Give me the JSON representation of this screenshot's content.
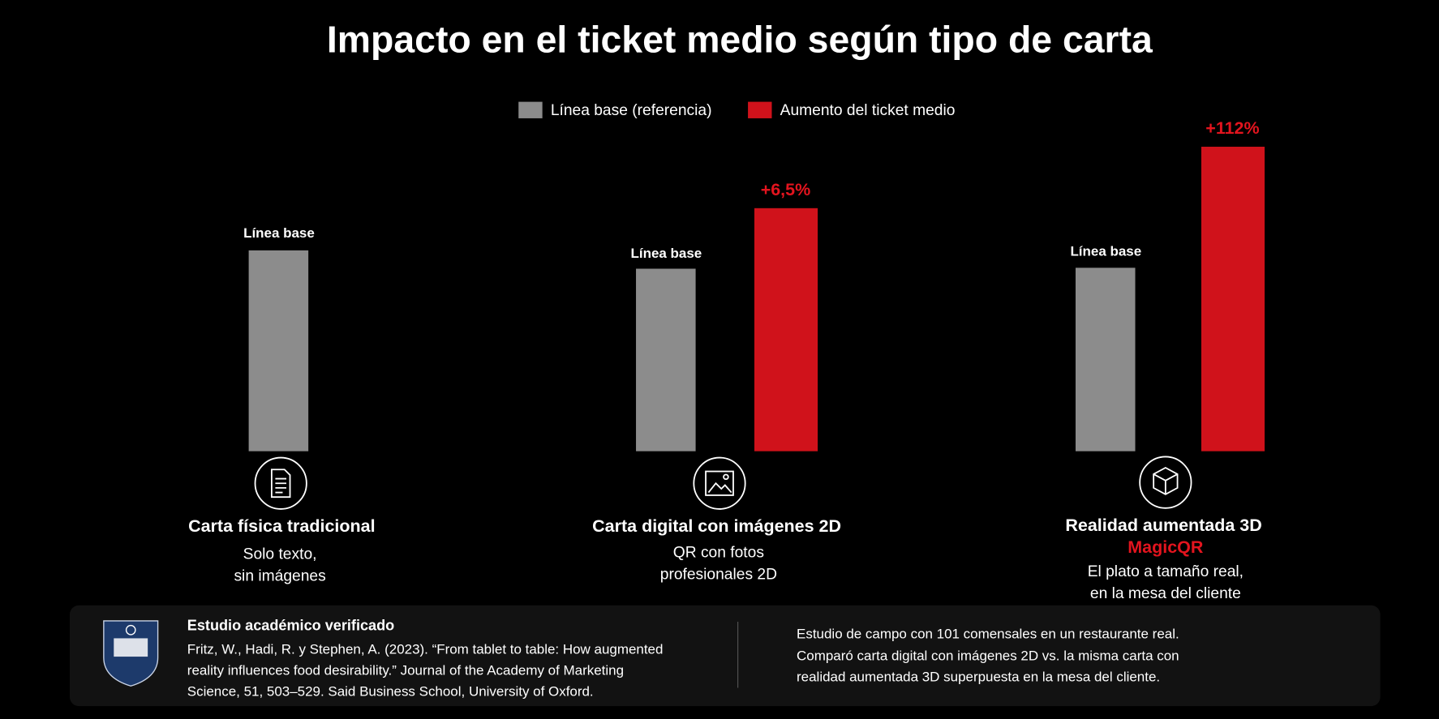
{
  "header": {
    "title": "Impacto en el ticket medio según tipo de carta"
  },
  "legend": [
    "Línea base (referencia)",
    "Aumento del ticket medio"
  ],
  "groups": [
    {
      "baseline_label": "Línea base",
      "title": "Carta física tradicional",
      "description": [
        "Solo texto,",
        "sin imágenes"
      ]
    },
    {
      "baseline_label": "Línea base",
      "increase_label": "+6,5%",
      "title": "Carta digital con imágenes 2D",
      "description": [
        "QR con fotos",
        "profesionales 2D"
      ]
    },
    {
      "baseline_label": "Línea base",
      "increase_label": "+112%",
      "title": "Realidad aumentada 3D",
      "brand": "MagicQR",
      "description": [
        "El plato a tamaño real,",
        "en la mesa del cliente"
      ]
    }
  ],
  "footer": {
    "heading": "Estudio académico verificado",
    "citation": [
      "Fritz, W., Hadi, R. y Stephen, A. (2023). “From tablet to table: How augmented",
      "reality influences food desirability.” Journal of the Academy of Marketing",
      "Science, 51, 503–529. Said Business School, University of Oxford."
    ],
    "summary": [
      "Estudio de campo con 101 comensales en un restaurante real.",
      "Comparó carta digital con imágenes 2D vs. la misma carta con",
      "realidad aumentada 3D superpuesta en la mesa del cliente."
    ]
  }
}
